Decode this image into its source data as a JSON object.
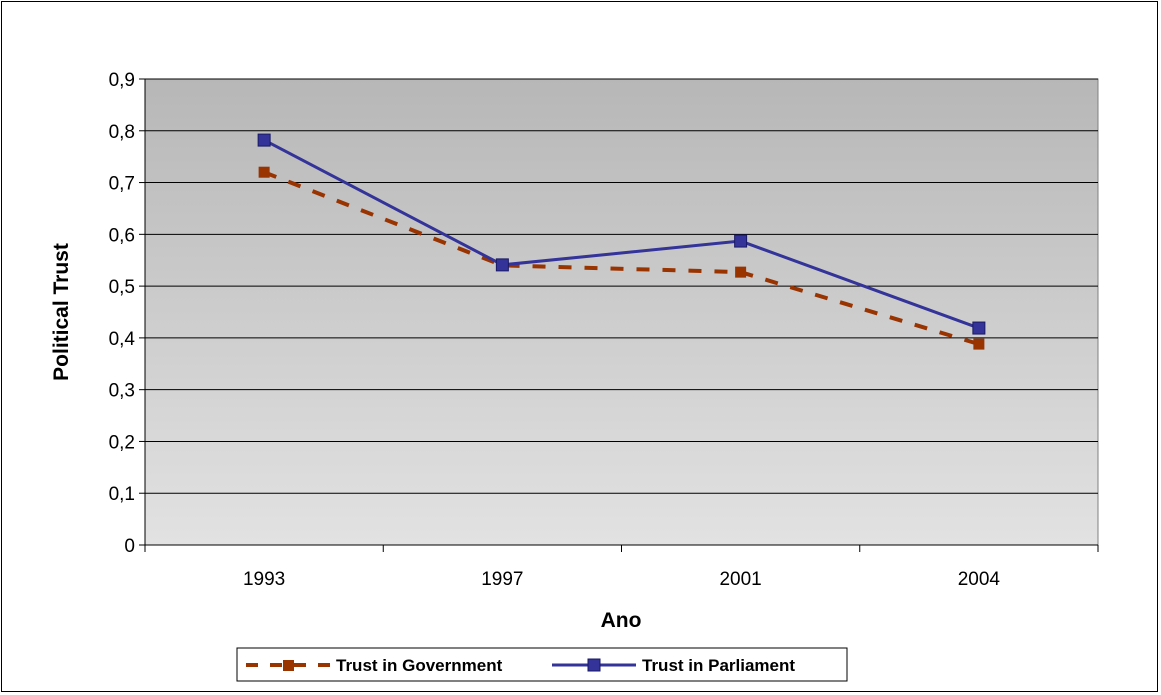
{
  "chart_data": {
    "type": "line",
    "title": "",
    "xlabel": "Ano",
    "ylabel": "Political Trust",
    "categories": [
      "1993",
      "1997",
      "2001",
      "2004"
    ],
    "ylim": [
      0,
      0.9
    ],
    "yticks": [
      "0",
      "0,1",
      "0,2",
      "0,3",
      "0,4",
      "0,5",
      "0,6",
      "0,7",
      "0,8",
      "0,9"
    ],
    "grid": true,
    "legend_position": "bottom",
    "series": [
      {
        "name": "Trust in Government",
        "values": [
          0.72,
          0.54,
          0.527,
          0.388
        ],
        "color": "#993300",
        "style": "dashed"
      },
      {
        "name": "Trust in Parliament",
        "values": [
          0.782,
          0.541,
          0.587,
          0.419
        ],
        "color": "#333399",
        "style": "solid"
      }
    ]
  }
}
